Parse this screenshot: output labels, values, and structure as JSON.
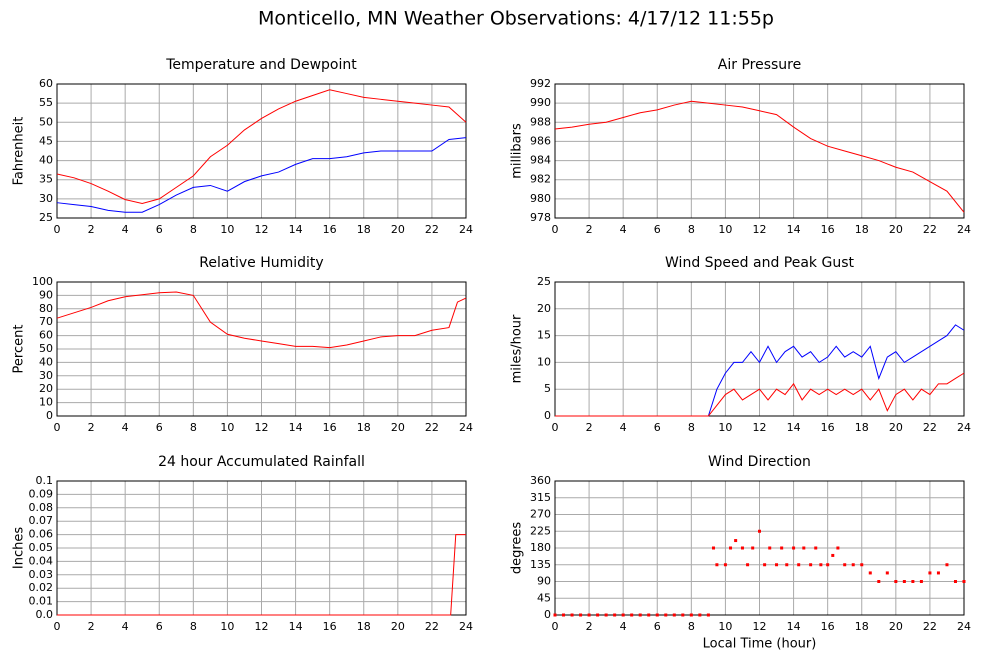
{
  "title": "Monticello, MN Weather Observations: 4/17/12 11:55p",
  "chart_data": [
    {
      "type": "line",
      "title": "Temperature and Dewpoint",
      "ylabel": "Fahrenheit",
      "grid": true,
      "x": [
        0,
        1,
        2,
        3,
        4,
        5,
        6,
        7,
        8,
        9,
        10,
        11,
        12,
        13,
        14,
        15,
        16,
        17,
        18,
        19,
        20,
        21,
        22,
        23,
        24
      ],
      "series": [
        {
          "color": "#ff0000",
          "values": [
            36.5,
            35.5,
            34,
            32,
            29.8,
            28.8,
            30,
            33,
            36,
            41,
            44,
            48,
            51,
            53.5,
            55.5,
            57,
            58.5,
            57.5,
            56.5,
            56,
            55.5,
            55,
            54.5,
            54,
            50
          ]
        },
        {
          "color": "#0000ff",
          "values": [
            29,
            28.5,
            28,
            27,
            26.5,
            26.5,
            28.5,
            31,
            33,
            33.5,
            32,
            34.5,
            36,
            37,
            39,
            40.5,
            40.5,
            41,
            42,
            42.5,
            42.5,
            42.5,
            42.5,
            45.5,
            46
          ]
        }
      ],
      "xlim": [
        0,
        24
      ],
      "xticks": [
        0,
        2,
        4,
        6,
        8,
        10,
        12,
        14,
        16,
        18,
        20,
        22,
        24
      ],
      "ylim": [
        25,
        60
      ],
      "yticks": [
        25,
        30,
        35,
        40,
        45,
        50,
        55,
        60
      ]
    },
    {
      "type": "line",
      "title": "Air Pressure",
      "ylabel": "millibars",
      "grid": true,
      "x": [
        0,
        1,
        2,
        3,
        4,
        5,
        6,
        7,
        8,
        9,
        10,
        11,
        12,
        13,
        14,
        15,
        16,
        17,
        18,
        19,
        20,
        21,
        22,
        23,
        24
      ],
      "series": [
        {
          "color": "#ff0000",
          "values": [
            987.3,
            987.5,
            987.8,
            988,
            988.5,
            989,
            989.3,
            989.8,
            990.2,
            990,
            989.8,
            989.6,
            989.2,
            988.8,
            987.5,
            986.3,
            985.5,
            985,
            984.5,
            984,
            983.3,
            982.8,
            981.8,
            980.8,
            978.6
          ]
        }
      ],
      "xlim": [
        0,
        24
      ],
      "xticks": [
        0,
        2,
        4,
        6,
        8,
        10,
        12,
        14,
        16,
        18,
        20,
        22,
        24
      ],
      "ylim": [
        978,
        992
      ],
      "yticks": [
        978,
        980,
        982,
        984,
        986,
        988,
        990,
        992
      ]
    },
    {
      "type": "line",
      "title": "Relative Humidity",
      "ylabel": "Percent",
      "grid": true,
      "x": [
        0,
        1,
        2,
        3,
        4,
        5,
        6,
        7,
        8,
        9,
        10,
        11,
        12,
        13,
        14,
        15,
        16,
        17,
        18,
        19,
        20,
        21,
        22,
        23,
        23.5,
        24
      ],
      "series": [
        {
          "color": "#ff0000",
          "values": [
            73,
            77,
            81,
            86,
            89,
            90.5,
            92,
            92.5,
            90,
            70,
            61,
            58,
            56,
            54,
            52,
            52,
            51,
            53,
            56,
            59,
            60,
            60,
            64,
            66,
            85,
            88
          ]
        }
      ],
      "xlim": [
        0,
        24
      ],
      "xticks": [
        0,
        2,
        4,
        6,
        8,
        10,
        12,
        14,
        16,
        18,
        20,
        22,
        24
      ],
      "ylim": [
        0,
        100
      ],
      "yticks": [
        0,
        10,
        20,
        30,
        40,
        50,
        60,
        70,
        80,
        90,
        100
      ]
    },
    {
      "type": "line",
      "title": "Wind Speed and Peak Gust",
      "ylabel": "miles/hour",
      "grid": true,
      "x": [
        0,
        9,
        9.5,
        10,
        10.5,
        11,
        11.5,
        12,
        12.5,
        13,
        13.5,
        14,
        14.5,
        15,
        15.5,
        16,
        16.5,
        17,
        17.5,
        18,
        18.5,
        19,
        19.5,
        20,
        20.5,
        21,
        21.5,
        22,
        22.5,
        23,
        23.5,
        24
      ],
      "series": [
        {
          "color": "#0000ff",
          "values": [
            0,
            0,
            5,
            8,
            10,
            10,
            12,
            10,
            13,
            10,
            12,
            13,
            11,
            12,
            10,
            11,
            13,
            11,
            12,
            11,
            13,
            7,
            11,
            12,
            10,
            11,
            12,
            13,
            14,
            15,
            17,
            16
          ]
        },
        {
          "color": "#ff0000",
          "values": [
            0,
            0,
            2,
            4,
            5,
            3,
            4,
            5,
            3,
            5,
            4,
            6,
            3,
            5,
            4,
            5,
            4,
            5,
            4,
            5,
            3,
            5,
            1,
            4,
            5,
            3,
            5,
            4,
            6,
            6,
            7,
            8
          ]
        }
      ],
      "xlim": [
        0,
        24
      ],
      "xticks": [
        0,
        2,
        4,
        6,
        8,
        10,
        12,
        14,
        16,
        18,
        20,
        22,
        24
      ],
      "ylim": [
        0,
        25
      ],
      "yticks": [
        0,
        5,
        10,
        15,
        20,
        25
      ]
    },
    {
      "type": "line",
      "title": "24 hour Accumulated Rainfall",
      "ylabel": "Inches",
      "grid": true,
      "x": [
        0,
        23.1,
        23.4,
        24
      ],
      "series": [
        {
          "color": "#ff0000",
          "values": [
            0,
            0,
            0.06,
            0.06
          ]
        }
      ],
      "xlim": [
        0,
        24
      ],
      "xticks": [
        0,
        2,
        4,
        6,
        8,
        10,
        12,
        14,
        16,
        18,
        20,
        22,
        24
      ],
      "ylim": [
        0,
        0.1
      ],
      "yticks": [
        {
          "value": 0,
          "label": "0.0"
        },
        0.01,
        0.02,
        0.03,
        0.04,
        0.05,
        0.06,
        0.07,
        0.08,
        0.09,
        0.1
      ]
    },
    {
      "type": "scatter",
      "title": "Wind Direction",
      "ylabel": "degrees",
      "xlabel": "Local Time (hour)",
      "grid": true,
      "color": "#ff0000",
      "x": [
        0,
        0.5,
        1,
        1.5,
        2,
        2.5,
        3,
        3.5,
        4,
        4.5,
        5,
        5.5,
        6,
        6.5,
        7,
        7.5,
        8,
        8.5,
        9,
        9.3,
        9.5,
        10,
        10.3,
        10.6,
        11,
        11.3,
        11.6,
        12,
        12.3,
        12.6,
        13,
        13.3,
        13.6,
        14,
        14.3,
        14.6,
        15,
        15.3,
        15.6,
        16,
        16.3,
        16.6,
        17,
        17.5,
        18,
        18.5,
        19,
        19.5,
        20,
        20.5,
        21,
        21.5,
        22,
        22.5,
        23,
        23.5,
        24
      ],
      "values": [
        0,
        0,
        0,
        0,
        0,
        0,
        0,
        0,
        0,
        0,
        0,
        0,
        0,
        0,
        0,
        0,
        0,
        0,
        0,
        180,
        135,
        135,
        180,
        200,
        180,
        135,
        180,
        225,
        135,
        180,
        135,
        180,
        135,
        180,
        135,
        180,
        135,
        180,
        135,
        135,
        160,
        180,
        135,
        135,
        135,
        113,
        90,
        113,
        90,
        90,
        90,
        90,
        113,
        113,
        135,
        90,
        90
      ],
      "xlim": [
        0,
        24
      ],
      "xticks": [
        0,
        2,
        4,
        6,
        8,
        10,
        12,
        14,
        16,
        18,
        20,
        22,
        24
      ],
      "ylim": [
        0,
        360
      ],
      "yticks": [
        0,
        45,
        90,
        135,
        180,
        225,
        270,
        315,
        360
      ]
    }
  ]
}
